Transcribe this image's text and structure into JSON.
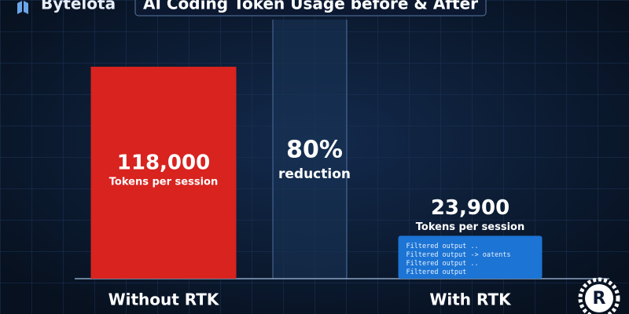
{
  "brand": "Bytelota",
  "chart_data": {
    "type": "bar",
    "title": "AI Coding Token Usage before & After",
    "categories": [
      "Without RTK",
      "With RTK"
    ],
    "values": [
      118000,
      23900
    ],
    "value_labels": [
      "118,000",
      "23,900"
    ],
    "value_sublabel": "Tokens per session",
    "colors": [
      "#d8231f",
      "#1c74d4"
    ],
    "annotation": {
      "headline": "80%",
      "text": "reduction"
    },
    "output_lines": [
      "Filtered output ..",
      "Filtered output -> oatents",
      "Filtered output ..",
      "Filtered output"
    ]
  },
  "logo": {
    "letter": "R"
  }
}
